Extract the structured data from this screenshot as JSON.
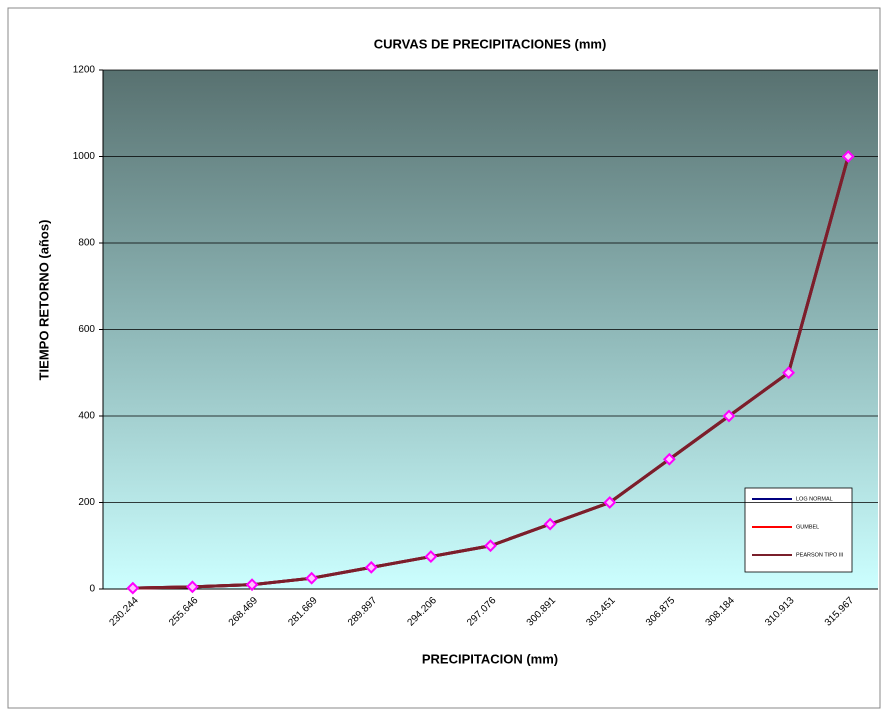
{
  "chart_data": {
    "type": "line",
    "title": "CURVAS DE PRECIPITACIONES  (mm)",
    "x_label": "PRECIPITACION  (mm)",
    "y_label": "TIEMPO RETORNO (años)",
    "categories": [
      "230.244",
      "255.646",
      "268.469",
      "281.669",
      "289.897",
      "294.206",
      "297.076",
      "300.891",
      "303.451",
      "306.875",
      "308.184",
      "310.913",
      "315.967"
    ],
    "series": [
      {
        "name": "LOG NORMAL",
        "color": "#000080",
        "values": [
          2,
          5,
          10,
          25,
          50,
          75,
          100,
          150,
          200,
          300,
          400,
          500,
          1000
        ]
      },
      {
        "name": "GUMBEL",
        "color": "#ff0000",
        "values": [
          2,
          5,
          10,
          25,
          50,
          75,
          100,
          150,
          200,
          300,
          400,
          500,
          1000
        ]
      },
      {
        "name": "PEARSON TIPO III",
        "color": "#7a1f2b",
        "values": [
          2,
          5,
          10,
          25,
          50,
          75,
          100,
          150,
          200,
          300,
          400,
          500,
          1000
        ]
      }
    ],
    "marker_color": "#ff00ff",
    "ylim": [
      0,
      1200
    ],
    "yticks": [
      0,
      200,
      400,
      600,
      800,
      1000,
      1200
    ],
    "grid": true,
    "legend": "lower right"
  }
}
